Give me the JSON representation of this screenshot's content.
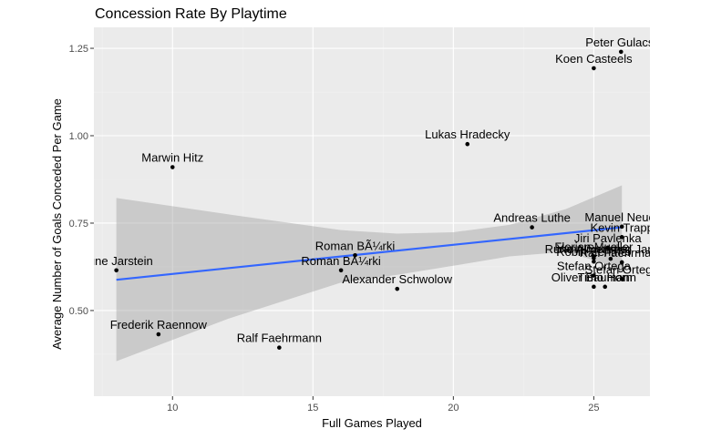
{
  "chart_data": {
    "type": "scatter",
    "title": "Concession Rate By Playtime",
    "xlabel": "Full Games Played",
    "ylabel": "Average Number of Goals Conceded Per Game",
    "xlim": [
      7.2,
      27.0
    ],
    "ylim": [
      0.255,
      1.31
    ],
    "xticks": [
      10,
      15,
      20,
      25
    ],
    "xtick_labels": [
      "10",
      "15",
      "20",
      "25"
    ],
    "yticks": [
      0.5,
      0.75,
      1.0,
      1.25
    ],
    "ytick_labels": [
      "0.50",
      "0.75",
      "1.00",
      "1.25"
    ],
    "grid": true,
    "points": [
      {
        "x": 25.97,
        "y": 1.24,
        "label": "Peter Gulacsi"
      },
      {
        "x": 25.0,
        "y": 1.193,
        "label": "Koen Casteels"
      },
      {
        "x": 20.5,
        "y": 0.976,
        "label": "Lukas Hradecky"
      },
      {
        "x": 10.0,
        "y": 0.91,
        "label": "Marwin Hitz"
      },
      {
        "x": 22.8,
        "y": 0.738,
        "label": "Andreas Luthe"
      },
      {
        "x": 26.0,
        "y": 0.74,
        "label": "Manuel Neuer"
      },
      {
        "x": 26.0,
        "y": 0.71,
        "label": "Kevin Trapp"
      },
      {
        "x": 25.5,
        "y": 0.68,
        "label": "Jiri Pavlenka"
      },
      {
        "x": 25.0,
        "y": 0.655,
        "label": "Florian Mueller"
      },
      {
        "x": 25.0,
        "y": 0.65,
        "label": "Yann Sommer"
      },
      {
        "x": 25.6,
        "y": 0.648,
        "label": "Rune Almenning Jarstein"
      },
      {
        "x": 25.0,
        "y": 0.64,
        "label": "Robin Zentner"
      },
      {
        "x": 26.0,
        "y": 0.638,
        "label": "Ralf Faehrmann"
      },
      {
        "x": 16.5,
        "y": 0.658,
        "label": "Roman BÃ¼rki"
      },
      {
        "x": 8.0,
        "y": 0.615,
        "label": "Rune Jarstein"
      },
      {
        "x": 16.0,
        "y": 0.615,
        "label": "Roman BA¼rki"
      },
      {
        "x": 25.0,
        "y": 0.6,
        "label": "Stefan Ortega"
      },
      {
        "x": 26.0,
        "y": 0.59,
        "label": "Stefan Ortega"
      },
      {
        "x": 25.0,
        "y": 0.568,
        "label": "Oliver Baumann"
      },
      {
        "x": 25.4,
        "y": 0.568,
        "label": "Timo Horn"
      },
      {
        "x": 18.0,
        "y": 0.562,
        "label": "Alexander Schwolow"
      },
      {
        "x": 9.5,
        "y": 0.432,
        "label": "Frederik Raennow"
      },
      {
        "x": 13.8,
        "y": 0.394,
        "label": "Ralf Faehrmann"
      }
    ],
    "trend": {
      "x0": 8.0,
      "y0": 0.588,
      "x1": 26.0,
      "y1": 0.738
    },
    "band_upper": [
      [
        8.0,
        0.822
      ],
      [
        12.0,
        0.775
      ],
      [
        16.0,
        0.73
      ],
      [
        18.0,
        0.72
      ],
      [
        20.0,
        0.724
      ],
      [
        22.0,
        0.745
      ],
      [
        24.0,
        0.79
      ],
      [
        26.0,
        0.858
      ]
    ],
    "band_lower": [
      [
        8.0,
        0.355
      ],
      [
        12.0,
        0.477
      ],
      [
        16.0,
        0.58
      ],
      [
        18.0,
        0.602
      ],
      [
        20.0,
        0.628
      ],
      [
        22.0,
        0.655
      ],
      [
        24.0,
        0.668
      ],
      [
        26.0,
        0.62
      ]
    ],
    "colors": {
      "panel": "#ebebeb",
      "grid_major": "#ffffff",
      "grid_minor": "#f2f2f2",
      "point": "#000000",
      "trend": "#3366ff",
      "band": "#999999"
    }
  }
}
